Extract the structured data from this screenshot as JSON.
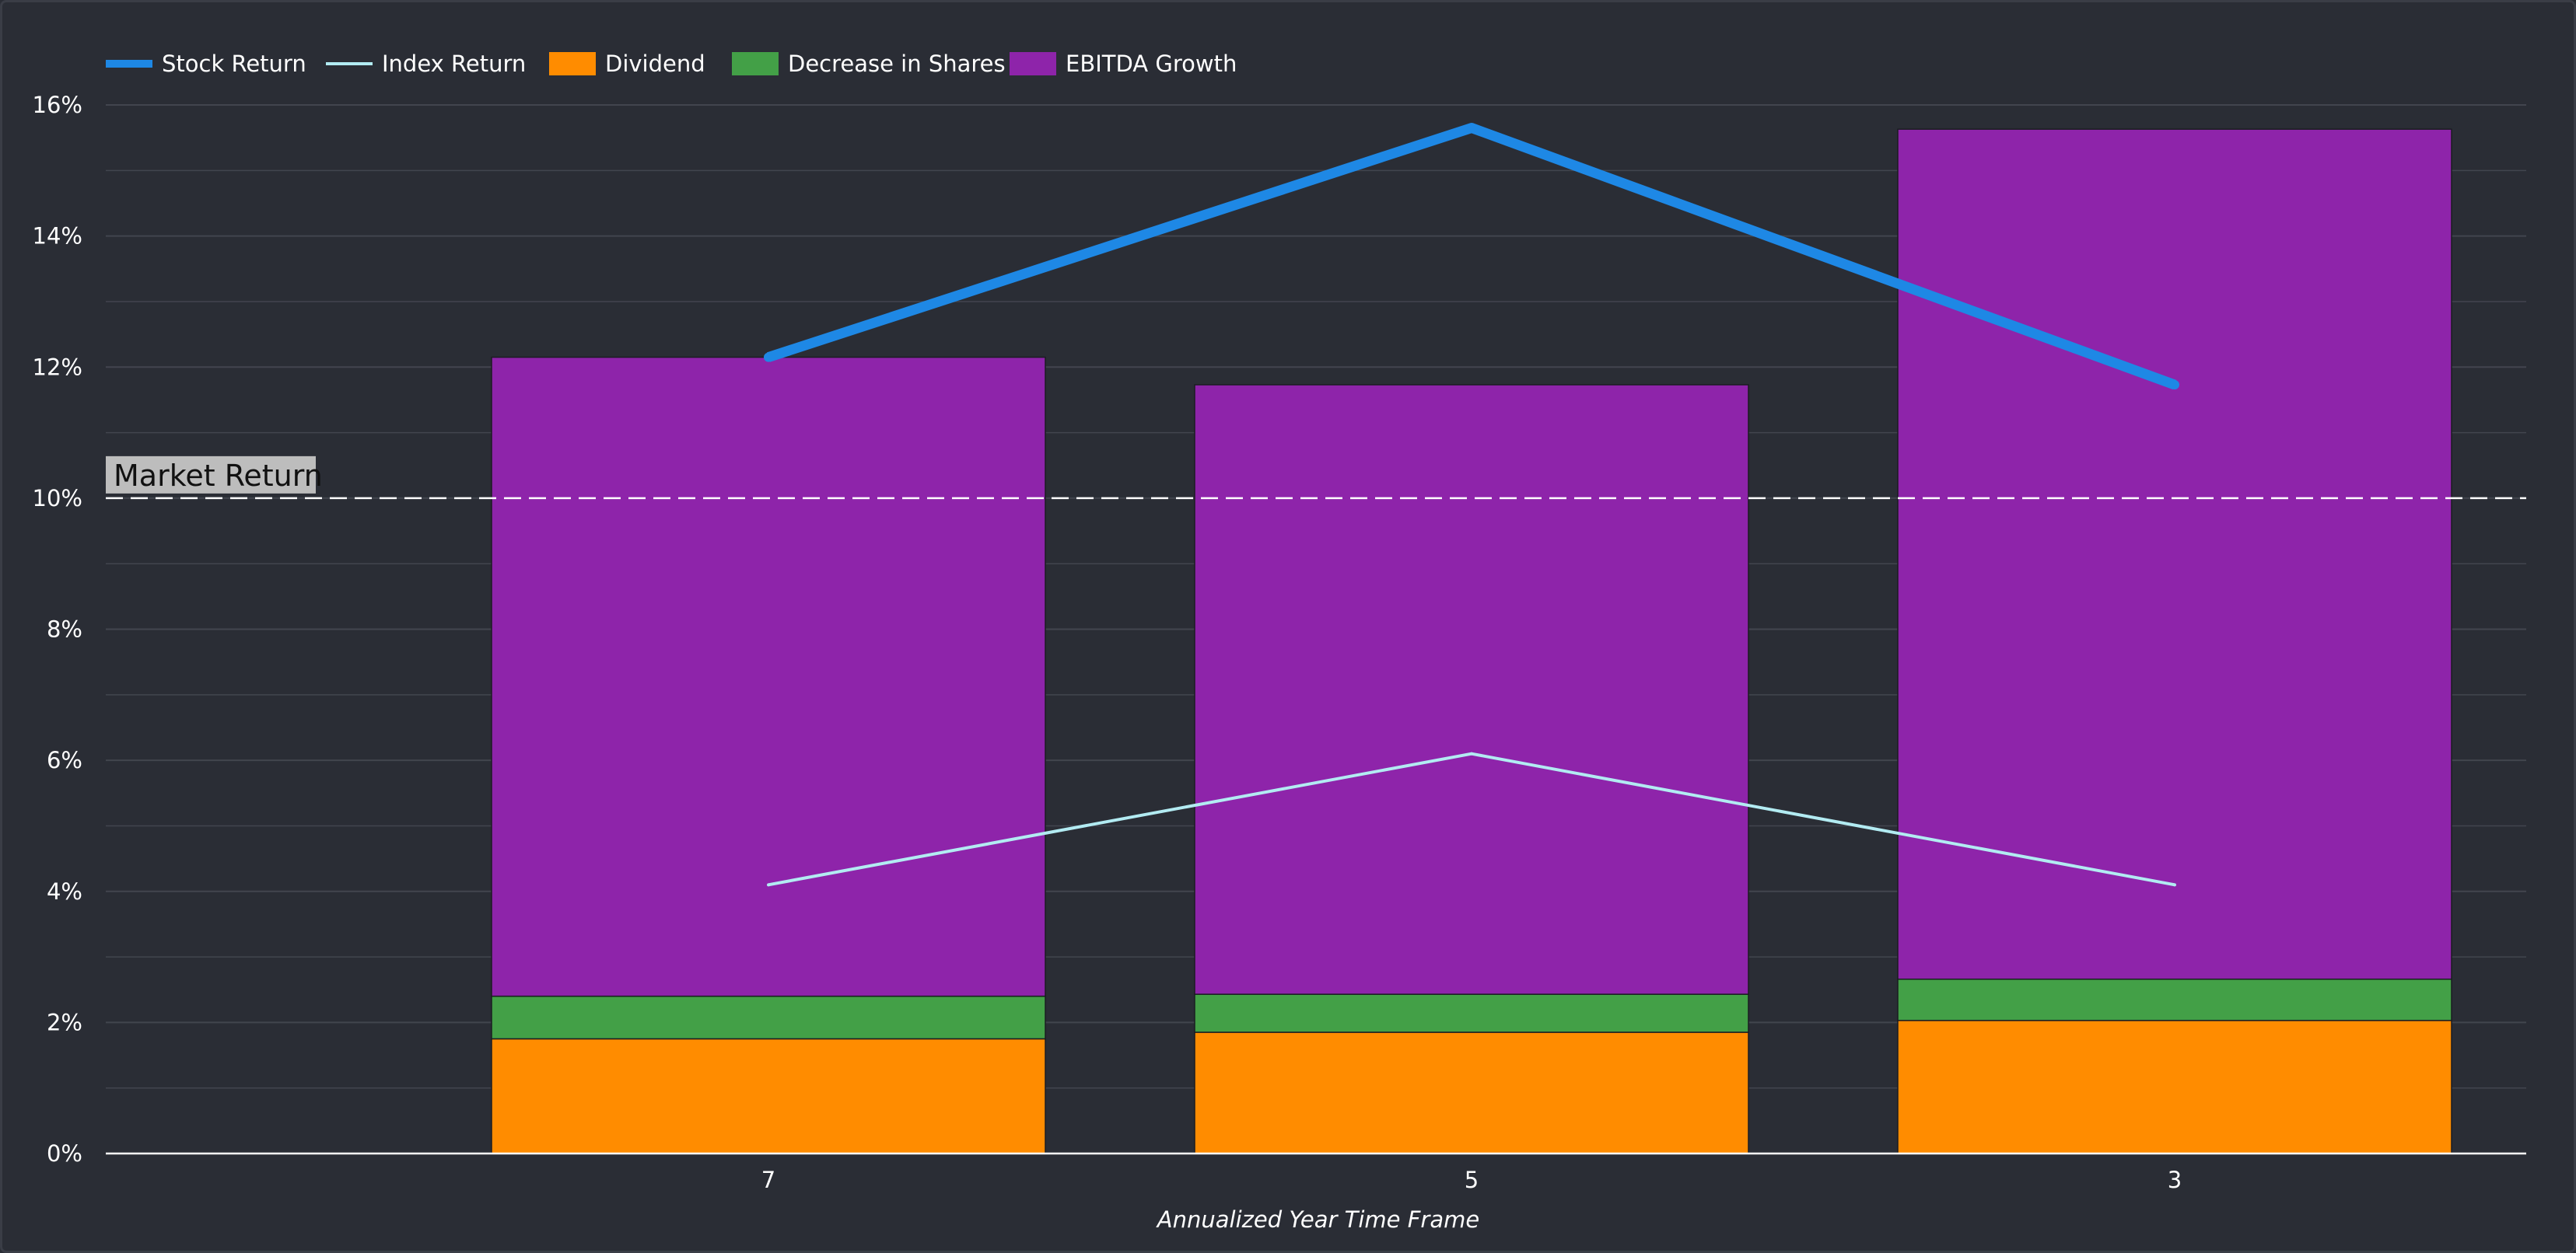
{
  "chart_data": {
    "type": "bar",
    "stacked": true,
    "categories": [
      "7",
      "5",
      "3"
    ],
    "xlabel": "Annualized Year Time Frame",
    "ylabel": "",
    "ylim": [
      0,
      16
    ],
    "y_ticks": [
      0,
      2,
      4,
      6,
      8,
      10,
      12,
      14,
      16
    ],
    "y_tick_suffix": "%",
    "grid": true,
    "legend_position": "top-left",
    "bar_series": [
      {
        "name": "Dividend",
        "color": "#ff8c00",
        "values": [
          1.75,
          1.85,
          2.03
        ]
      },
      {
        "name": "Decrease in Shares",
        "color": "#43a047",
        "values": [
          0.65,
          0.58,
          0.63
        ]
      },
      {
        "name": "EBITDA Growth",
        "color": "#8e24aa",
        "values": [
          9.75,
          9.3,
          12.97
        ]
      }
    ],
    "line_series": [
      {
        "name": "Stock Return",
        "color": "#1e88e5",
        "values": [
          12.15,
          15.65,
          11.73
        ],
        "width": "thick"
      },
      {
        "name": "Index Return",
        "color": "#b2ebf2",
        "values": [
          4.1,
          6.1,
          4.1
        ],
        "width": "thin"
      }
    ],
    "legend_order": [
      "Stock Return",
      "Index Return",
      "Dividend",
      "Decrease in Shares",
      "EBITDA Growth"
    ],
    "annotations": [
      {
        "label": "Market Return",
        "y": 10,
        "style": "dashed",
        "color": "#ffffff"
      }
    ],
    "colors": {
      "background": "#2a2d35",
      "grid": "#42454e",
      "axis": "#ffffff",
      "annotation_box": "#bdbdbd"
    }
  }
}
